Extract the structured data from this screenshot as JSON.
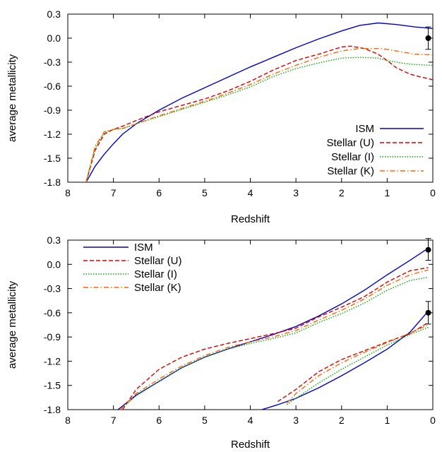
{
  "chart_data": [
    {
      "type": "line",
      "xlabel": "Redshift",
      "ylabel": "average metallicity",
      "xlim": [
        8,
        0
      ],
      "ylim": [
        -1.8,
        0.3
      ],
      "xticks": [
        "8",
        "7",
        "6",
        "5",
        "4",
        "3",
        "2",
        "1",
        "0"
      ],
      "yticks": [
        "0.3",
        "0.0",
        "-0.3",
        "-0.6",
        "-0.9",
        "-1.2",
        "-1.5",
        "-1.8"
      ],
      "legend_position": "bottom-right",
      "series": [
        {
          "name": "ISM",
          "color": "#0000cc",
          "dash": "solid",
          "x": [
            7.6,
            7.4,
            7.2,
            7.0,
            6.8,
            6.5,
            6.0,
            5.5,
            5.0,
            4.5,
            4.0,
            3.5,
            3.0,
            2.5,
            2.0,
            1.6,
            1.2,
            0.8,
            0.4,
            0.0
          ],
          "y": [
            -1.8,
            -1.6,
            -1.45,
            -1.32,
            -1.2,
            -1.07,
            -0.9,
            -0.75,
            -0.62,
            -0.49,
            -0.36,
            -0.24,
            -0.12,
            -0.01,
            0.09,
            0.16,
            0.19,
            0.17,
            0.14,
            0.12
          ]
        },
        {
          "name": "Stellar (U)",
          "color": "#dd0000",
          "dash": "dashed",
          "x": [
            7.6,
            7.4,
            7.2,
            7.0,
            6.8,
            6.5,
            6.0,
            5.5,
            5.0,
            4.5,
            4.0,
            3.5,
            3.0,
            2.5,
            2.0,
            1.8,
            1.5,
            1.2,
            1.0,
            0.8,
            0.5,
            0.3,
            0.0
          ],
          "y": [
            -1.8,
            -1.4,
            -1.2,
            -1.14,
            -1.1,
            -1.03,
            -0.92,
            -0.84,
            -0.76,
            -0.66,
            -0.54,
            -0.4,
            -0.28,
            -0.2,
            -0.11,
            -0.1,
            -0.13,
            -0.2,
            -0.28,
            -0.37,
            -0.45,
            -0.48,
            -0.52
          ]
        },
        {
          "name": "Stellar (I)",
          "color": "#00aa00",
          "dash": "dotted",
          "x": [
            7.6,
            7.4,
            7.2,
            7.0,
            6.8,
            6.5,
            6.0,
            5.5,
            5.0,
            4.5,
            4.0,
            3.5,
            3.0,
            2.5,
            2.0,
            1.6,
            1.2,
            1.0,
            0.7,
            0.4,
            0.0
          ],
          "y": [
            -1.8,
            -1.37,
            -1.18,
            -1.14,
            -1.13,
            -1.07,
            -0.98,
            -0.89,
            -0.8,
            -0.71,
            -0.61,
            -0.48,
            -0.38,
            -0.31,
            -0.25,
            -0.24,
            -0.25,
            -0.28,
            -0.31,
            -0.33,
            -0.34
          ]
        },
        {
          "name": "Stellar (K)",
          "color": "#ff6600",
          "dash": "dashdot",
          "x": [
            7.6,
            7.4,
            7.2,
            7.0,
            6.8,
            6.5,
            6.0,
            5.5,
            5.0,
            4.5,
            4.0,
            3.5,
            3.0,
            2.5,
            2.0,
            1.6,
            1.2,
            1.0,
            0.7,
            0.4,
            0.0
          ],
          "y": [
            -1.8,
            -1.35,
            -1.17,
            -1.14,
            -1.13,
            -1.07,
            -0.97,
            -0.88,
            -0.79,
            -0.69,
            -0.58,
            -0.45,
            -0.34,
            -0.24,
            -0.16,
            -0.13,
            -0.13,
            -0.14,
            -0.17,
            -0.2,
            -0.21
          ]
        }
      ],
      "observed_points": [
        {
          "x": 0.1,
          "y": 0.0,
          "yerr_low": -0.14,
          "yerr_high": 0.14
        }
      ]
    },
    {
      "type": "line",
      "xlabel": "Redshift",
      "ylabel": "average metallicity",
      "xlim": [
        8,
        0
      ],
      "ylim": [
        -1.8,
        0.3
      ],
      "xticks": [
        "8",
        "7",
        "6",
        "5",
        "4",
        "3",
        "2",
        "1",
        "0"
      ],
      "yticks": [
        "0.3",
        "0.0",
        "-0.3",
        "-0.6",
        "-0.9",
        "-1.2",
        "-1.5",
        "-1.8"
      ],
      "legend_position": "top-left",
      "series": [
        {
          "name": "ISM",
          "color": "#0000cc",
          "dash": "solid",
          "segments": [
            {
              "x": [
                6.9,
                6.5,
                6.0,
                5.5,
                5.0,
                4.5,
                4.0,
                3.5,
                3.0,
                2.5,
                2.0,
                1.5,
                1.0,
                0.5,
                0.1
              ],
              "y": [
                -1.8,
                -1.62,
                -1.45,
                -1.28,
                -1.15,
                -1.05,
                -0.96,
                -0.87,
                -0.77,
                -0.64,
                -0.49,
                -0.32,
                -0.13,
                0.05,
                0.2
              ]
            },
            {
              "x": [
                3.75,
                3.4,
                3.0,
                2.5,
                2.0,
                1.5,
                1.0,
                0.5,
                0.1
              ],
              "y": [
                -1.8,
                -1.74,
                -1.66,
                -1.53,
                -1.38,
                -1.22,
                -1.05,
                -0.84,
                -0.58
              ]
            }
          ]
        },
        {
          "name": "Stellar (U)",
          "color": "#dd0000",
          "dash": "dashed",
          "segments": [
            {
              "x": [
                6.8,
                6.5,
                6.0,
                5.5,
                5.0,
                4.5,
                4.0,
                3.5,
                3.0,
                2.5,
                2.0,
                1.5,
                1.0,
                0.5,
                0.1
              ],
              "y": [
                -1.8,
                -1.55,
                -1.3,
                -1.15,
                -1.05,
                -0.98,
                -0.92,
                -0.86,
                -0.79,
                -0.65,
                -0.53,
                -0.4,
                -0.22,
                -0.08,
                -0.04
              ]
            },
            {
              "x": [
                3.4,
                3.0,
                2.5,
                2.0,
                1.5,
                1.0,
                0.5,
                0.1
              ],
              "y": [
                -1.7,
                -1.55,
                -1.33,
                -1.18,
                -1.07,
                -0.96,
                -0.86,
                -0.72
              ]
            }
          ]
        },
        {
          "name": "Stellar (I)",
          "color": "#00aa00",
          "dash": "dotted",
          "segments": [
            {
              "x": [
                6.85,
                6.5,
                6.0,
                5.5,
                5.0,
                4.5,
                4.0,
                3.5,
                3.0,
                2.5,
                2.0,
                1.5,
                1.0,
                0.5,
                0.1
              ],
              "y": [
                -1.8,
                -1.63,
                -1.45,
                -1.28,
                -1.15,
                -1.05,
                -0.98,
                -0.92,
                -0.85,
                -0.72,
                -0.61,
                -0.48,
                -0.32,
                -0.2,
                -0.16
              ]
            },
            {
              "x": [
                3.2,
                3.0,
                2.5,
                2.0,
                1.5,
                1.0,
                0.5,
                0.1
              ],
              "y": [
                -1.74,
                -1.66,
                -1.47,
                -1.3,
                -1.15,
                -1.0,
                -0.87,
                -0.78
              ]
            }
          ]
        },
        {
          "name": "Stellar (K)",
          "color": "#ff6600",
          "dash": "dashdot",
          "segments": [
            {
              "x": [
                6.85,
                6.5,
                6.0,
                5.5,
                5.0,
                4.5,
                4.0,
                3.5,
                3.0,
                2.5,
                2.0,
                1.5,
                1.0,
                0.5,
                0.1
              ],
              "y": [
                -1.8,
                -1.6,
                -1.42,
                -1.26,
                -1.13,
                -1.03,
                -0.96,
                -0.9,
                -0.82,
                -0.69,
                -0.57,
                -0.43,
                -0.26,
                -0.13,
                -0.07
              ]
            },
            {
              "x": [
                3.2,
                3.0,
                2.5,
                2.0,
                1.5,
                1.0,
                0.5,
                0.1
              ],
              "y": [
                -1.72,
                -1.6,
                -1.38,
                -1.22,
                -1.09,
                -0.97,
                -0.85,
                -0.75
              ]
            }
          ]
        }
      ],
      "observed_points": [
        {
          "x": 0.1,
          "y": 0.18,
          "yerr_low": 0.05,
          "yerr_high": 0.32
        },
        {
          "x": 0.1,
          "y": -0.6,
          "yerr_low": -0.74,
          "yerr_high": -0.46
        }
      ]
    }
  ]
}
